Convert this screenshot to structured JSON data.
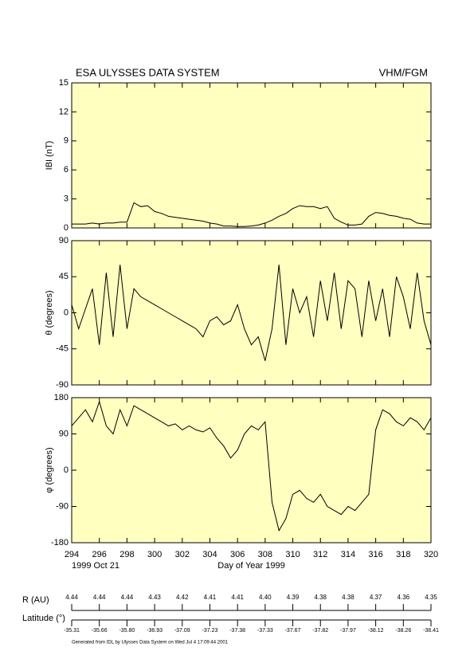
{
  "header": {
    "title": "ESA ULYSSES DATA SYSTEM",
    "subtitle": "VHM/FGM"
  },
  "chart_data": [
    {
      "type": "line",
      "ylabel": "IBI (nT)",
      "xlim": [
        294,
        320
      ],
      "xticks": [
        294,
        296,
        298,
        300,
        302,
        304,
        306,
        308,
        310,
        312,
        314,
        316,
        318,
        320
      ],
      "ylim": [
        0,
        15
      ],
      "yticks": [
        0,
        3,
        6,
        9,
        12,
        15
      ],
      "color": "#000000",
      "x": [
        294,
        294.5,
        295,
        295.5,
        296,
        296.5,
        297,
        297.5,
        298,
        298.5,
        299,
        299.5,
        300,
        300.5,
        301,
        301.5,
        302,
        302.5,
        303,
        303.5,
        304,
        304.5,
        305,
        305.5,
        306,
        306.5,
        307,
        307.5,
        308,
        308.5,
        309,
        309.5,
        310,
        310.5,
        311,
        311.5,
        312,
        312.5,
        313,
        313.5,
        314,
        314.5,
        315,
        315.5,
        316,
        316.5,
        317,
        317.5,
        318,
        318.5,
        319,
        319.5,
        320
      ],
      "values": [
        0.4,
        0.4,
        0.4,
        0.5,
        0.4,
        0.5,
        0.5,
        0.6,
        0.6,
        2.6,
        2.2,
        2.3,
        1.7,
        1.5,
        1.2,
        1.1,
        1.0,
        0.9,
        0.8,
        0.7,
        0.5,
        0.4,
        0.2,
        0.2,
        0.15,
        0.15,
        0.2,
        0.3,
        0.5,
        0.8,
        1.2,
        1.5,
        2.0,
        2.3,
        2.2,
        2.2,
        2.0,
        2.2,
        1.0,
        0.6,
        0.3,
        0.3,
        0.4,
        1.2,
        1.6,
        1.5,
        1.3,
        1.2,
        1.0,
        0.9,
        0.5,
        0.4,
        0.4
      ]
    },
    {
      "type": "line",
      "ylabel": "θ (degrees)",
      "xlim": [
        294,
        320
      ],
      "xticks": [
        294,
        296,
        298,
        300,
        302,
        304,
        306,
        308,
        310,
        312,
        314,
        316,
        318,
        320
      ],
      "ylim": [
        -90,
        90
      ],
      "yticks": [
        -90,
        -45,
        0,
        45,
        90
      ],
      "color": "#000000",
      "x": [
        294,
        294.5,
        295,
        295.5,
        296,
        296.5,
        297,
        297.5,
        298,
        298.5,
        299,
        299.5,
        300,
        300.5,
        301,
        301.5,
        302,
        302.5,
        303,
        303.5,
        304,
        304.5,
        305,
        305.5,
        306,
        306.5,
        307,
        307.5,
        308,
        308.5,
        309,
        309.5,
        310,
        310.5,
        311,
        311.5,
        312,
        312.5,
        313,
        313.5,
        314,
        314.5,
        315,
        315.5,
        316,
        316.5,
        317,
        317.5,
        318,
        318.5,
        319,
        319.5,
        320
      ],
      "values": [
        10,
        -20,
        5,
        30,
        -40,
        50,
        -30,
        60,
        -20,
        30,
        20,
        15,
        10,
        5,
        0,
        -5,
        -10,
        -15,
        -20,
        -30,
        -10,
        -5,
        -15,
        -10,
        10,
        -20,
        -40,
        -30,
        -60,
        -20,
        60,
        -40,
        30,
        0,
        20,
        -30,
        40,
        -10,
        50,
        -20,
        40,
        30,
        -30,
        40,
        -10,
        30,
        -30,
        45,
        20,
        -20,
        50,
        -10,
        -40
      ]
    },
    {
      "type": "line",
      "ylabel": "φ (degrees)",
      "xlabel": "Day of Year 1999",
      "annotation": "1999 Oct 21",
      "xlim": [
        294,
        320
      ],
      "xticks": [
        294,
        296,
        298,
        300,
        302,
        304,
        306,
        308,
        310,
        312,
        314,
        316,
        318,
        320
      ],
      "ylim": [
        -180,
        180
      ],
      "yticks": [
        -180,
        -90,
        0,
        90,
        180
      ],
      "color": "#000000",
      "x": [
        294,
        294.5,
        295,
        295.5,
        296,
        296.5,
        297,
        297.5,
        298,
        298.5,
        299,
        299.5,
        300,
        300.5,
        301,
        301.5,
        302,
        302.5,
        303,
        303.5,
        304,
        304.5,
        305,
        305.5,
        306,
        306.5,
        307,
        307.5,
        308,
        308.5,
        309,
        309.5,
        310,
        310.5,
        311,
        311.5,
        312,
        312.5,
        313,
        313.5,
        314,
        314.5,
        315,
        315.5,
        316,
        316.5,
        317,
        317.5,
        318,
        318.5,
        319,
        319.5,
        320
      ],
      "values": [
        110,
        130,
        150,
        120,
        170,
        110,
        90,
        150,
        110,
        160,
        150,
        140,
        130,
        120,
        110,
        115,
        100,
        110,
        100,
        95,
        105,
        80,
        60,
        30,
        50,
        90,
        110,
        100,
        120,
        -80,
        -150,
        -120,
        -60,
        -50,
        -70,
        -80,
        -60,
        -90,
        -100,
        -110,
        -90,
        -100,
        -80,
        -60,
        100,
        150,
        140,
        120,
        110,
        130,
        120,
        100,
        130
      ]
    }
  ],
  "ephemeris": {
    "r_label": "R (AU)",
    "r_values": [
      "4.44",
      "4.44",
      "4.44",
      "4.43",
      "4.42",
      "4.41",
      "4.41",
      "4.40",
      "4.39",
      "4.38",
      "4.38",
      "4.37",
      "4.36",
      "4.35"
    ],
    "lat_label": "Latitude (°)",
    "lat_values": [
      "-35.31",
      "-35.66",
      "-35.80",
      "-36.93",
      "-37.09",
      "-37.23",
      "-37.38",
      "-37.33",
      "-37.67",
      "-37.82",
      "-37.97",
      "-38.12",
      "-38.26",
      "-38.41"
    ]
  },
  "footer": "Generated from IDL by Ulysses Data System on Wed Jul  4 17:09:44 2001"
}
